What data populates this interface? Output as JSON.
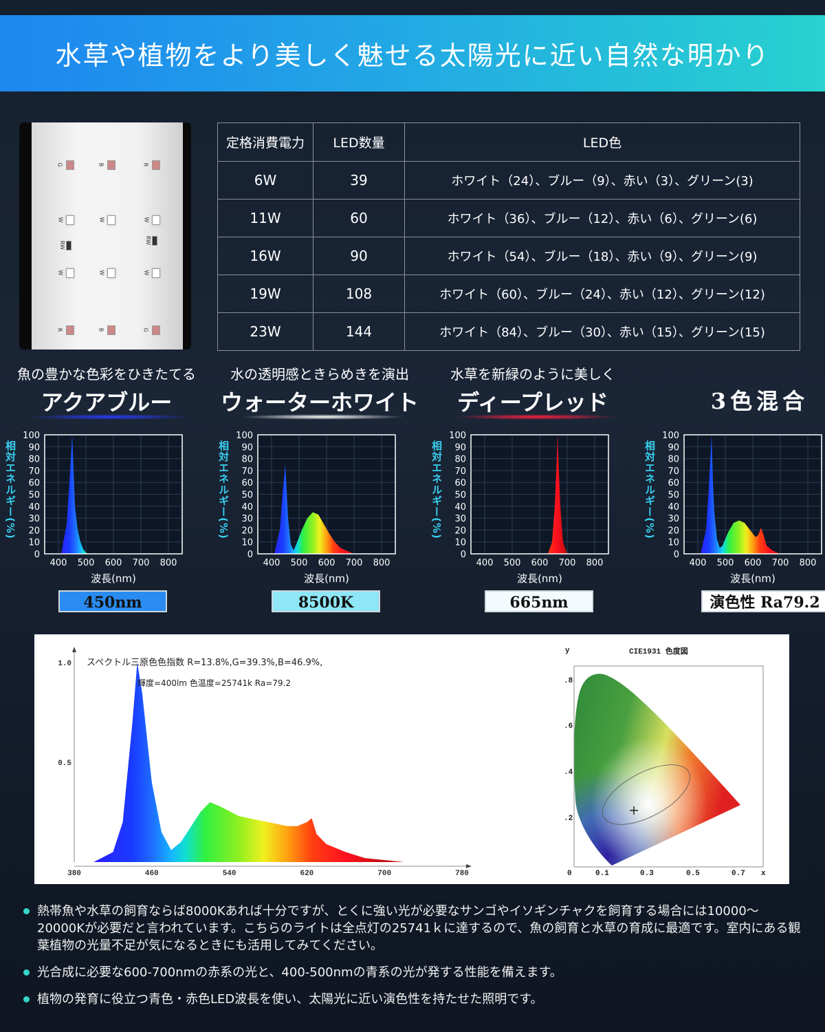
{
  "header": {
    "title": "水草や植物をより美しく魅せる太陽光に近い自然な明かり"
  },
  "led_photo": {
    "labels": [
      "G",
      "B",
      "R",
      "W",
      "W",
      "W",
      "RW",
      "RW",
      "W",
      "W",
      "W",
      "R",
      "B",
      "G"
    ]
  },
  "spec_table": {
    "headers": [
      "定格消費電力",
      "LED数量",
      "LED色"
    ],
    "rows": [
      [
        "6W",
        "39",
        "ホワイト（24）、ブルー（9）、赤い（3）、グリーン(3)"
      ],
      [
        "11W",
        "60",
        "ホワイト（36）、ブルー（12）、赤い（6）、グリーン(6)"
      ],
      [
        "16W",
        "90",
        "ホワイト（54）、ブルー（18）、赤い（9）、グリーン(9)"
      ],
      [
        "19W",
        "108",
        "ホワイト（60）、ブルー（24）、赤い（12）、グリーン(12)"
      ],
      [
        "23W",
        "144",
        "ホワイト（84）、ブルー（30）、赤い（15）、グリーン(15)"
      ]
    ]
  },
  "sections": [
    {
      "subtitle": "魚の豊かな色彩をひきたてる",
      "title": "アクアブルー",
      "value": "450nm",
      "glow": "#2a3cff",
      "box_color": "#2a8cf0"
    },
    {
      "subtitle": "水の透明感ときらめきを演出",
      "title": "ウォーターホワイト",
      "value": "8500K",
      "glow": "#ffffff",
      "box_color": "#8ee6f6"
    },
    {
      "subtitle": "水草を新緑のように美しく",
      "title": "ディープレッド",
      "value": "665nm",
      "glow": "#ff2040",
      "box_color": "#f4fbff"
    },
    {
      "subtitle": "",
      "title": "3色混合",
      "value": "演色性 Ra79.2",
      "glow": "",
      "box_color": "#ffffff"
    }
  ],
  "chart_data": [
    {
      "type": "area",
      "xlabel": "波長(nm)",
      "ylabel": "相対エネルギー(%)",
      "xlim": [
        350,
        850
      ],
      "ylim": [
        0,
        100
      ],
      "grid": true,
      "xticks": [
        400,
        500,
        600,
        700,
        800
      ],
      "yticks": [
        0,
        10,
        20,
        30,
        40,
        50,
        60,
        70,
        80,
        90,
        100
      ],
      "x": [
        410,
        430,
        440,
        450,
        455,
        460,
        470,
        480,
        490,
        500,
        510
      ],
      "y": [
        0,
        25,
        60,
        100,
        70,
        40,
        20,
        10,
        4,
        1,
        0
      ]
    },
    {
      "type": "area",
      "xlabel": "波長(nm)",
      "ylabel": "相対エネルギー(%)",
      "xlim": [
        350,
        850
      ],
      "ylim": [
        0,
        100
      ],
      "grid": true,
      "xticks": [
        400,
        500,
        600,
        700,
        800
      ],
      "yticks": [
        0,
        10,
        20,
        30,
        40,
        50,
        60,
        70,
        80,
        90,
        100
      ],
      "x": [
        410,
        430,
        440,
        450,
        460,
        470,
        480,
        490,
        510,
        530,
        550,
        570,
        590,
        610,
        630,
        650,
        680,
        700
      ],
      "y": [
        0,
        20,
        50,
        75,
        30,
        8,
        3,
        8,
        20,
        30,
        35,
        33,
        25,
        17,
        10,
        5,
        2,
        0
      ]
    },
    {
      "type": "area",
      "xlabel": "波長(nm)",
      "ylabel": "相対エネルギー(%)",
      "xlim": [
        350,
        850
      ],
      "ylim": [
        0,
        100
      ],
      "grid": true,
      "xticks": [
        400,
        500,
        600,
        700,
        800
      ],
      "yticks": [
        0,
        10,
        20,
        30,
        40,
        50,
        60,
        70,
        80,
        90,
        100
      ],
      "x": [
        630,
        645,
        655,
        662,
        665,
        668,
        675,
        685,
        700
      ],
      "y": [
        0,
        10,
        40,
        80,
        100,
        80,
        40,
        10,
        0
      ]
    },
    {
      "type": "area",
      "xlabel": "波長(nm)",
      "ylabel": "相対エネルギー(%)",
      "xlim": [
        350,
        850
      ],
      "ylim": [
        0,
        100
      ],
      "grid": true,
      "xticks": [
        400,
        500,
        600,
        700,
        800
      ],
      "yticks": [
        0,
        10,
        20,
        30,
        40,
        50,
        60,
        70,
        80,
        90,
        100
      ],
      "x": [
        410,
        430,
        440,
        450,
        455,
        460,
        470,
        480,
        490,
        510,
        530,
        550,
        570,
        590,
        610,
        620,
        630,
        640,
        650,
        670,
        700
      ],
      "y": [
        0,
        20,
        55,
        100,
        60,
        35,
        12,
        5,
        7,
        18,
        26,
        28,
        26,
        20,
        14,
        16,
        22,
        15,
        7,
        3,
        0
      ]
    },
    {
      "type": "area",
      "title": "スペクトル三原色色指数 R=13.8%,G=39.3%,B=46.9%,",
      "subtitle": "輝度=400lm 色温度=25741k Ra=79.2",
      "xlim": [
        380,
        780
      ],
      "ylim": [
        0,
        1.0
      ],
      "xticks": [
        380,
        460,
        540,
        620,
        700,
        780
      ],
      "yticks": [
        "0.5",
        "1.0"
      ],
      "x": [
        400,
        420,
        430,
        440,
        445,
        450,
        460,
        470,
        480,
        490,
        510,
        520,
        530,
        550,
        580,
        600,
        610,
        620,
        625,
        630,
        640,
        660,
        680,
        700,
        720
      ],
      "y": [
        0,
        0.05,
        0.2,
        0.7,
        1.0,
        0.85,
        0.4,
        0.15,
        0.06,
        0.1,
        0.25,
        0.3,
        0.28,
        0.23,
        0.2,
        0.18,
        0.18,
        0.2,
        0.22,
        0.14,
        0.09,
        0.05,
        0.02,
        0.01,
        0
      ]
    },
    {
      "type": "scatter",
      "title": "CIE1931 色度図",
      "xlabel": "x",
      "ylabel": "y",
      "xticks": [
        "0",
        "0.1",
        "0.3",
        "0.5",
        "0.7"
      ],
      "yticks": [
        ".2",
        ".4",
        ".6",
        ".8"
      ],
      "x": [
        0.26
      ],
      "y": [
        0.24
      ]
    }
  ],
  "bullets": [
    "熱帯魚や水草の飼育ならば8000Kあれば十分ですが、とくに強い光が必要なサンゴやイソギンチャクを飼育する場合には10000～20000Kが必要だと言われています。こちらのライトは全点灯の25741ｋに達するので、魚の飼育と水草の育成に最適です。室内にある観葉植物の光量不足が気になるときにも活用してみてください。",
    "光合成に必要な600-700nmの赤系の光と、400-500nmの青系の光が発する性能を備えます。",
    "植物の発育に役立つ青色・赤色LED波長を使い、太陽光に近い演色性を持たせた照明です。"
  ]
}
